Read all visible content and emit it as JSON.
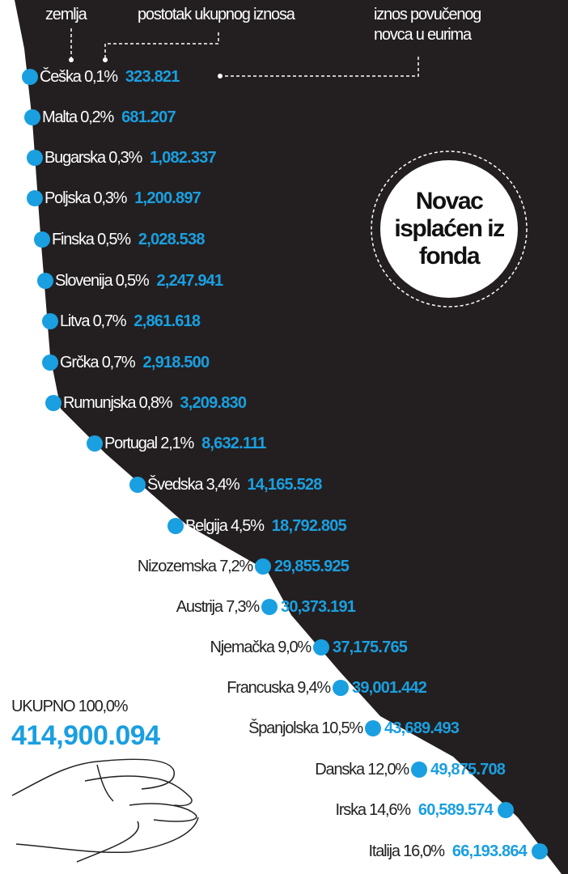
{
  "header": {
    "country_label": "zemlja",
    "percent_label": "postotak ukupnog iznosa",
    "amount_label_line1": "iznos povučenog",
    "amount_label_line2": "novca u eurima"
  },
  "badge": {
    "line1": "Novac",
    "line2": "isplaćen iz",
    "line3": "fonda"
  },
  "total": {
    "label": "UKUPNO 100,0%",
    "value": "414,900.094"
  },
  "colors": {
    "accent": "#1a9fe0",
    "background_dark": "#231f20"
  },
  "chart_data": {
    "type": "table",
    "title": "Novac isplaćen iz fonda",
    "columns": [
      "zemlja",
      "postotak ukupnog iznosa",
      "iznos povučenog novca u eurima"
    ],
    "rows": [
      {
        "country": "Češka",
        "percent_text": "0,1%",
        "amount_text": "323.821",
        "percent": 0.1,
        "amount": 323821
      },
      {
        "country": "Malta",
        "percent_text": "0,2%",
        "amount_text": "681.207",
        "percent": 0.2,
        "amount": 681207
      },
      {
        "country": "Bugarska",
        "percent_text": "0,3%",
        "amount_text": "1,082.337",
        "percent": 0.3,
        "amount": 1082337
      },
      {
        "country": "Poljska",
        "percent_text": "0,3%",
        "amount_text": "1,200.897",
        "percent": 0.3,
        "amount": 1200897
      },
      {
        "country": "Finska",
        "percent_text": "0,5%",
        "amount_text": "2,028.538",
        "percent": 0.5,
        "amount": 2028538
      },
      {
        "country": "Slovenija",
        "percent_text": "0,5%",
        "amount_text": "2,247.941",
        "percent": 0.5,
        "amount": 2247941
      },
      {
        "country": "Litva",
        "percent_text": "0,7%",
        "amount_text": "2,861.618",
        "percent": 0.7,
        "amount": 2861618
      },
      {
        "country": "Grčka",
        "percent_text": "0,7%",
        "amount_text": "2,918.500",
        "percent": 0.7,
        "amount": 2918500
      },
      {
        "country": "Rumunjska",
        "percent_text": "0,8%",
        "amount_text": "3,209.830",
        "percent": 0.8,
        "amount": 3209830
      },
      {
        "country": "Portugal",
        "percent_text": "2,1%",
        "amount_text": "8,632.111",
        "percent": 2.1,
        "amount": 8632111
      },
      {
        "country": "Švedska",
        "percent_text": "3,4%",
        "amount_text": "14,165.528",
        "percent": 3.4,
        "amount": 14165528
      },
      {
        "country": "Belgija",
        "percent_text": "4,5%",
        "amount_text": "18,792.805",
        "percent": 4.5,
        "amount": 18792805
      },
      {
        "country": "Nizozemska",
        "percent_text": "7,2%",
        "amount_text": "29,855.925",
        "percent": 7.2,
        "amount": 29855925
      },
      {
        "country": "Austrija",
        "percent_text": "7,3%",
        "amount_text": "30,373.191",
        "percent": 7.3,
        "amount": 30373191
      },
      {
        "country": "Njemačka",
        "percent_text": "9,0%",
        "amount_text": "37,175.765",
        "percent": 9.0,
        "amount": 37175765
      },
      {
        "country": "Francuska",
        "percent_text": "9,4%",
        "amount_text": "39,001.442",
        "percent": 9.4,
        "amount": 39001442
      },
      {
        "country": "Španjolska",
        "percent_text": "10,5%",
        "amount_text": "43,689.493",
        "percent": 10.5,
        "amount": 43689493
      },
      {
        "country": "Danska",
        "percent_text": "12,0%",
        "amount_text": "49,875.708",
        "percent": 12.0,
        "amount": 49875708
      },
      {
        "country": "Irska",
        "percent_text": "14,6%",
        "amount_text": "60,589.574",
        "percent": 14.6,
        "amount": 60589574
      },
      {
        "country": "Italija",
        "percent_text": "16,0%",
        "amount_text": "66,193.864",
        "percent": 16.0,
        "amount": 66193864
      }
    ]
  }
}
